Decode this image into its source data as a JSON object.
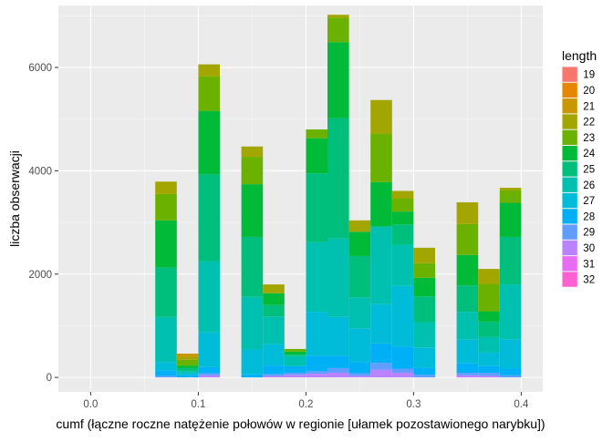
{
  "chart_data": {
    "type": "bar",
    "stacked": true,
    "xlabel": "cumf (łączne roczne natężenie połowów w regionie [ułamek pozostawionego narybku])",
    "ylabel": "liczba obserwacji",
    "xlim": [
      -0.03,
      0.42
    ],
    "ylim": [
      -280,
      7200
    ],
    "x_ticks": [
      0.0,
      0.1,
      0.2,
      0.3,
      0.4
    ],
    "x_tick_labels": [
      "0.0",
      "0.1",
      "0.2",
      "0.3",
      "0.4"
    ],
    "y_ticks": [
      0,
      2000,
      4000,
      6000
    ],
    "y_tick_labels": [
      "0",
      "2000",
      "4000",
      "6000"
    ],
    "grid": true,
    "legend_position": "right",
    "bin_width": 0.02,
    "bins": [
      {
        "x_min": 0.06,
        "x_max": 0.08,
        "total": 3790
      },
      {
        "x_min": 0.08,
        "x_max": 0.1,
        "total": 460
      },
      {
        "x_min": 0.1,
        "x_max": 0.12,
        "total": 6060
      },
      {
        "x_min": 0.14,
        "x_max": 0.16,
        "total": 4470
      },
      {
        "x_min": 0.16,
        "x_max": 0.18,
        "total": 1800
      },
      {
        "x_min": 0.18,
        "x_max": 0.2,
        "total": 550
      },
      {
        "x_min": 0.2,
        "x_max": 0.22,
        "total": 4800
      },
      {
        "x_min": 0.22,
        "x_max": 0.24,
        "total": 7020
      },
      {
        "x_min": 0.24,
        "x_max": 0.26,
        "total": 3040
      },
      {
        "x_min": 0.26,
        "x_max": 0.28,
        "total": 5370
      },
      {
        "x_min": 0.28,
        "x_max": 0.3,
        "total": 3610
      },
      {
        "x_min": 0.3,
        "x_max": 0.32,
        "total": 2510
      },
      {
        "x_min": 0.34,
        "x_max": 0.36,
        "total": 3390
      },
      {
        "x_min": 0.36,
        "x_max": 0.38,
        "total": 2100
      },
      {
        "x_min": 0.38,
        "x_max": 0.4,
        "total": 3670
      }
    ],
    "legend": {
      "title": "length",
      "items": [
        {
          "label": "19",
          "color": "#F8766D"
        },
        {
          "label": "20",
          "color": "#E58700"
        },
        {
          "label": "21",
          "color": "#C99800"
        },
        {
          "label": "22",
          "color": "#A3A500"
        },
        {
          "label": "23",
          "color": "#6BB100"
        },
        {
          "label": "24",
          "color": "#00BA38"
        },
        {
          "label": "25",
          "color": "#00BF7D"
        },
        {
          "label": "26",
          "color": "#00C0AF"
        },
        {
          "label": "27",
          "color": "#00BCD8"
        },
        {
          "label": "28",
          "color": "#00B0F6"
        },
        {
          "label": "29",
          "color": "#619CFF"
        },
        {
          "label": "30",
          "color": "#B983FF"
        },
        {
          "label": "31",
          "color": "#E76BF3"
        },
        {
          "label": "32",
          "color": "#FD61D1"
        }
      ]
    },
    "series": [
      {
        "name": "19",
        "values": [
          0,
          0,
          0,
          0,
          0,
          0,
          0,
          0,
          0,
          0,
          0,
          0,
          0,
          0,
          0
        ]
      },
      {
        "name": "20",
        "values": [
          0,
          0,
          0,
          0,
          0,
          0,
          0,
          0,
          0,
          0,
          0,
          0,
          0,
          0,
          0
        ]
      },
      {
        "name": "21",
        "values": [
          0,
          0,
          0,
          0,
          0,
          0,
          0,
          0,
          0,
          0,
          0,
          0,
          0,
          0,
          0
        ]
      },
      {
        "name": "22",
        "values": [
          0,
          0,
          0,
          0,
          0,
          0,
          0,
          0,
          0,
          0,
          0,
          0,
          0,
          0,
          0
        ]
      },
      {
        "name": "23",
        "values": [
          0,
          0,
          0,
          0,
          0,
          0,
          0,
          0,
          0,
          0,
          0,
          0,
          0,
          0,
          0
        ]
      },
      {
        "name": "24",
        "values": [
          0,
          0,
          0,
          0,
          0,
          0,
          0,
          0,
          0,
          0,
          0,
          0,
          0,
          0,
          0
        ]
      },
      {
        "name": "25",
        "values": [
          0,
          0,
          0,
          0,
          0,
          0,
          0,
          0,
          0,
          0,
          0,
          0,
          0,
          0,
          0
        ]
      },
      {
        "name": "26",
        "values": [
          0,
          0,
          0,
          0,
          0,
          0,
          0,
          0,
          0,
          0,
          0,
          0,
          0,
          0,
          0
        ]
      },
      {
        "name": "27",
        "values": [
          0,
          0,
          0,
          0,
          0,
          0,
          0,
          0,
          0,
          0,
          0,
          0,
          0,
          0,
          0
        ]
      },
      {
        "name": "28",
        "values": [
          0,
          0,
          0,
          0,
          0,
          0,
          0,
          0,
          0,
          0,
          0,
          0,
          0,
          0,
          0
        ]
      },
      {
        "name": "29",
        "values": [
          0,
          0,
          0,
          0,
          0,
          0,
          0,
          0,
          0,
          0,
          0,
          0,
          0,
          0,
          0
        ]
      },
      {
        "name": "30",
        "values": [
          0,
          0,
          0,
          0,
          0,
          0,
          0,
          0,
          0,
          0,
          0,
          0,
          0,
          0,
          0
        ]
      },
      {
        "name": "31",
        "values": [
          0,
          0,
          0,
          0,
          0,
          0,
          0,
          0,
          0,
          0,
          0,
          0,
          0,
          0,
          0
        ]
      },
      {
        "name": "32",
        "values": [
          0,
          0,
          0,
          0,
          0,
          0,
          0,
          0,
          0,
          0,
          0,
          0,
          0,
          0,
          0
        ]
      }
    ],
    "stacks": [
      [
        [
          29,
          30
        ],
        [
          28,
          140
        ],
        [
          27,
          300
        ],
        [
          26,
          1170
        ],
        [
          25,
          2130
        ],
        [
          24,
          3040
        ],
        [
          23,
          3550
        ],
        [
          22,
          3790
        ]
      ],
      [
        [
          28,
          40
        ],
        [
          27,
          80
        ],
        [
          26,
          120
        ],
        [
          25,
          180
        ],
        [
          24,
          230
        ],
        [
          23,
          340
        ],
        [
          22,
          400
        ],
        [
          21,
          460
        ]
      ],
      [
        [
          30,
          40
        ],
        [
          29,
          80
        ],
        [
          28,
          200
        ],
        [
          27,
          870
        ],
        [
          26,
          2250
        ],
        [
          25,
          3930
        ],
        [
          24,
          5160
        ],
        [
          23,
          5830
        ],
        [
          22,
          6060
        ]
      ],
      [
        [
          28,
          60
        ],
        [
          27,
          540
        ],
        [
          26,
          1560
        ],
        [
          25,
          2720
        ],
        [
          24,
          3740
        ],
        [
          23,
          4270
        ],
        [
          22,
          4470
        ]
      ],
      [
        [
          30,
          30
        ],
        [
          29,
          60
        ],
        [
          28,
          230
        ],
        [
          27,
          650
        ],
        [
          26,
          1180
        ],
        [
          25,
          1400
        ],
        [
          24,
          1630
        ],
        [
          22,
          1800
        ]
      ],
      [
        [
          30,
          50
        ],
        [
          29,
          90
        ],
        [
          28,
          220
        ],
        [
          26,
          410
        ],
        [
          25,
          440
        ],
        [
          24,
          500
        ],
        [
          23,
          550
        ]
      ],
      [
        [
          30,
          70
        ],
        [
          29,
          120
        ],
        [
          28,
          420
        ],
        [
          27,
          1270
        ],
        [
          26,
          2620
        ],
        [
          25,
          3950
        ],
        [
          24,
          4630
        ],
        [
          23,
          4800
        ]
      ],
      [
        [
          30,
          90
        ],
        [
          29,
          180
        ],
        [
          28,
          420
        ],
        [
          27,
          1170
        ],
        [
          26,
          2690
        ],
        [
          25,
          5020
        ],
        [
          24,
          6490
        ],
        [
          23,
          6960
        ],
        [
          22,
          7020
        ]
      ],
      [
        [
          30,
          30
        ],
        [
          29,
          80
        ],
        [
          28,
          300
        ],
        [
          27,
          950
        ],
        [
          26,
          1550
        ],
        [
          25,
          2350
        ],
        [
          24,
          2820
        ],
        [
          23,
          2820
        ],
        [
          22,
          3040
        ]
      ],
      [
        [
          30,
          150
        ],
        [
          29,
          280
        ],
        [
          28,
          660
        ],
        [
          27,
          1420
        ],
        [
          26,
          2920
        ],
        [
          25,
          2920
        ],
        [
          24,
          3780
        ],
        [
          23,
          4720
        ],
        [
          22,
          5370
        ]
      ],
      [
        [
          30,
          90
        ],
        [
          29,
          170
        ],
        [
          28,
          600
        ],
        [
          27,
          1770
        ],
        [
          26,
          2570
        ],
        [
          25,
          2960
        ],
        [
          24,
          3210
        ],
        [
          23,
          3460
        ],
        [
          22,
          3610
        ]
      ],
      [
        [
          29,
          50
        ],
        [
          28,
          190
        ],
        [
          27,
          580
        ],
        [
          26,
          1070
        ],
        [
          25,
          1570
        ],
        [
          24,
          1930
        ],
        [
          23,
          2210
        ],
        [
          22,
          2510
        ]
      ],
      [
        [
          30,
          40
        ],
        [
          29,
          90
        ],
        [
          28,
          270
        ],
        [
          27,
          730
        ],
        [
          26,
          1270
        ],
        [
          25,
          1780
        ],
        [
          24,
          2370
        ],
        [
          23,
          2970
        ],
        [
          22,
          3390
        ]
      ],
      [
        [
          30,
          30
        ],
        [
          29,
          90
        ],
        [
          28,
          220
        ],
        [
          27,
          480
        ],
        [
          26,
          780
        ],
        [
          25,
          1080
        ],
        [
          24,
          1280
        ],
        [
          23,
          1810
        ],
        [
          22,
          2100
        ]
      ],
      [
        [
          29,
          40
        ],
        [
          28,
          170
        ],
        [
          27,
          740
        ],
        [
          26,
          1800
        ],
        [
          25,
          2720
        ],
        [
          24,
          3380
        ],
        [
          23,
          3620
        ],
        [
          22,
          3670
        ]
      ]
    ]
  }
}
